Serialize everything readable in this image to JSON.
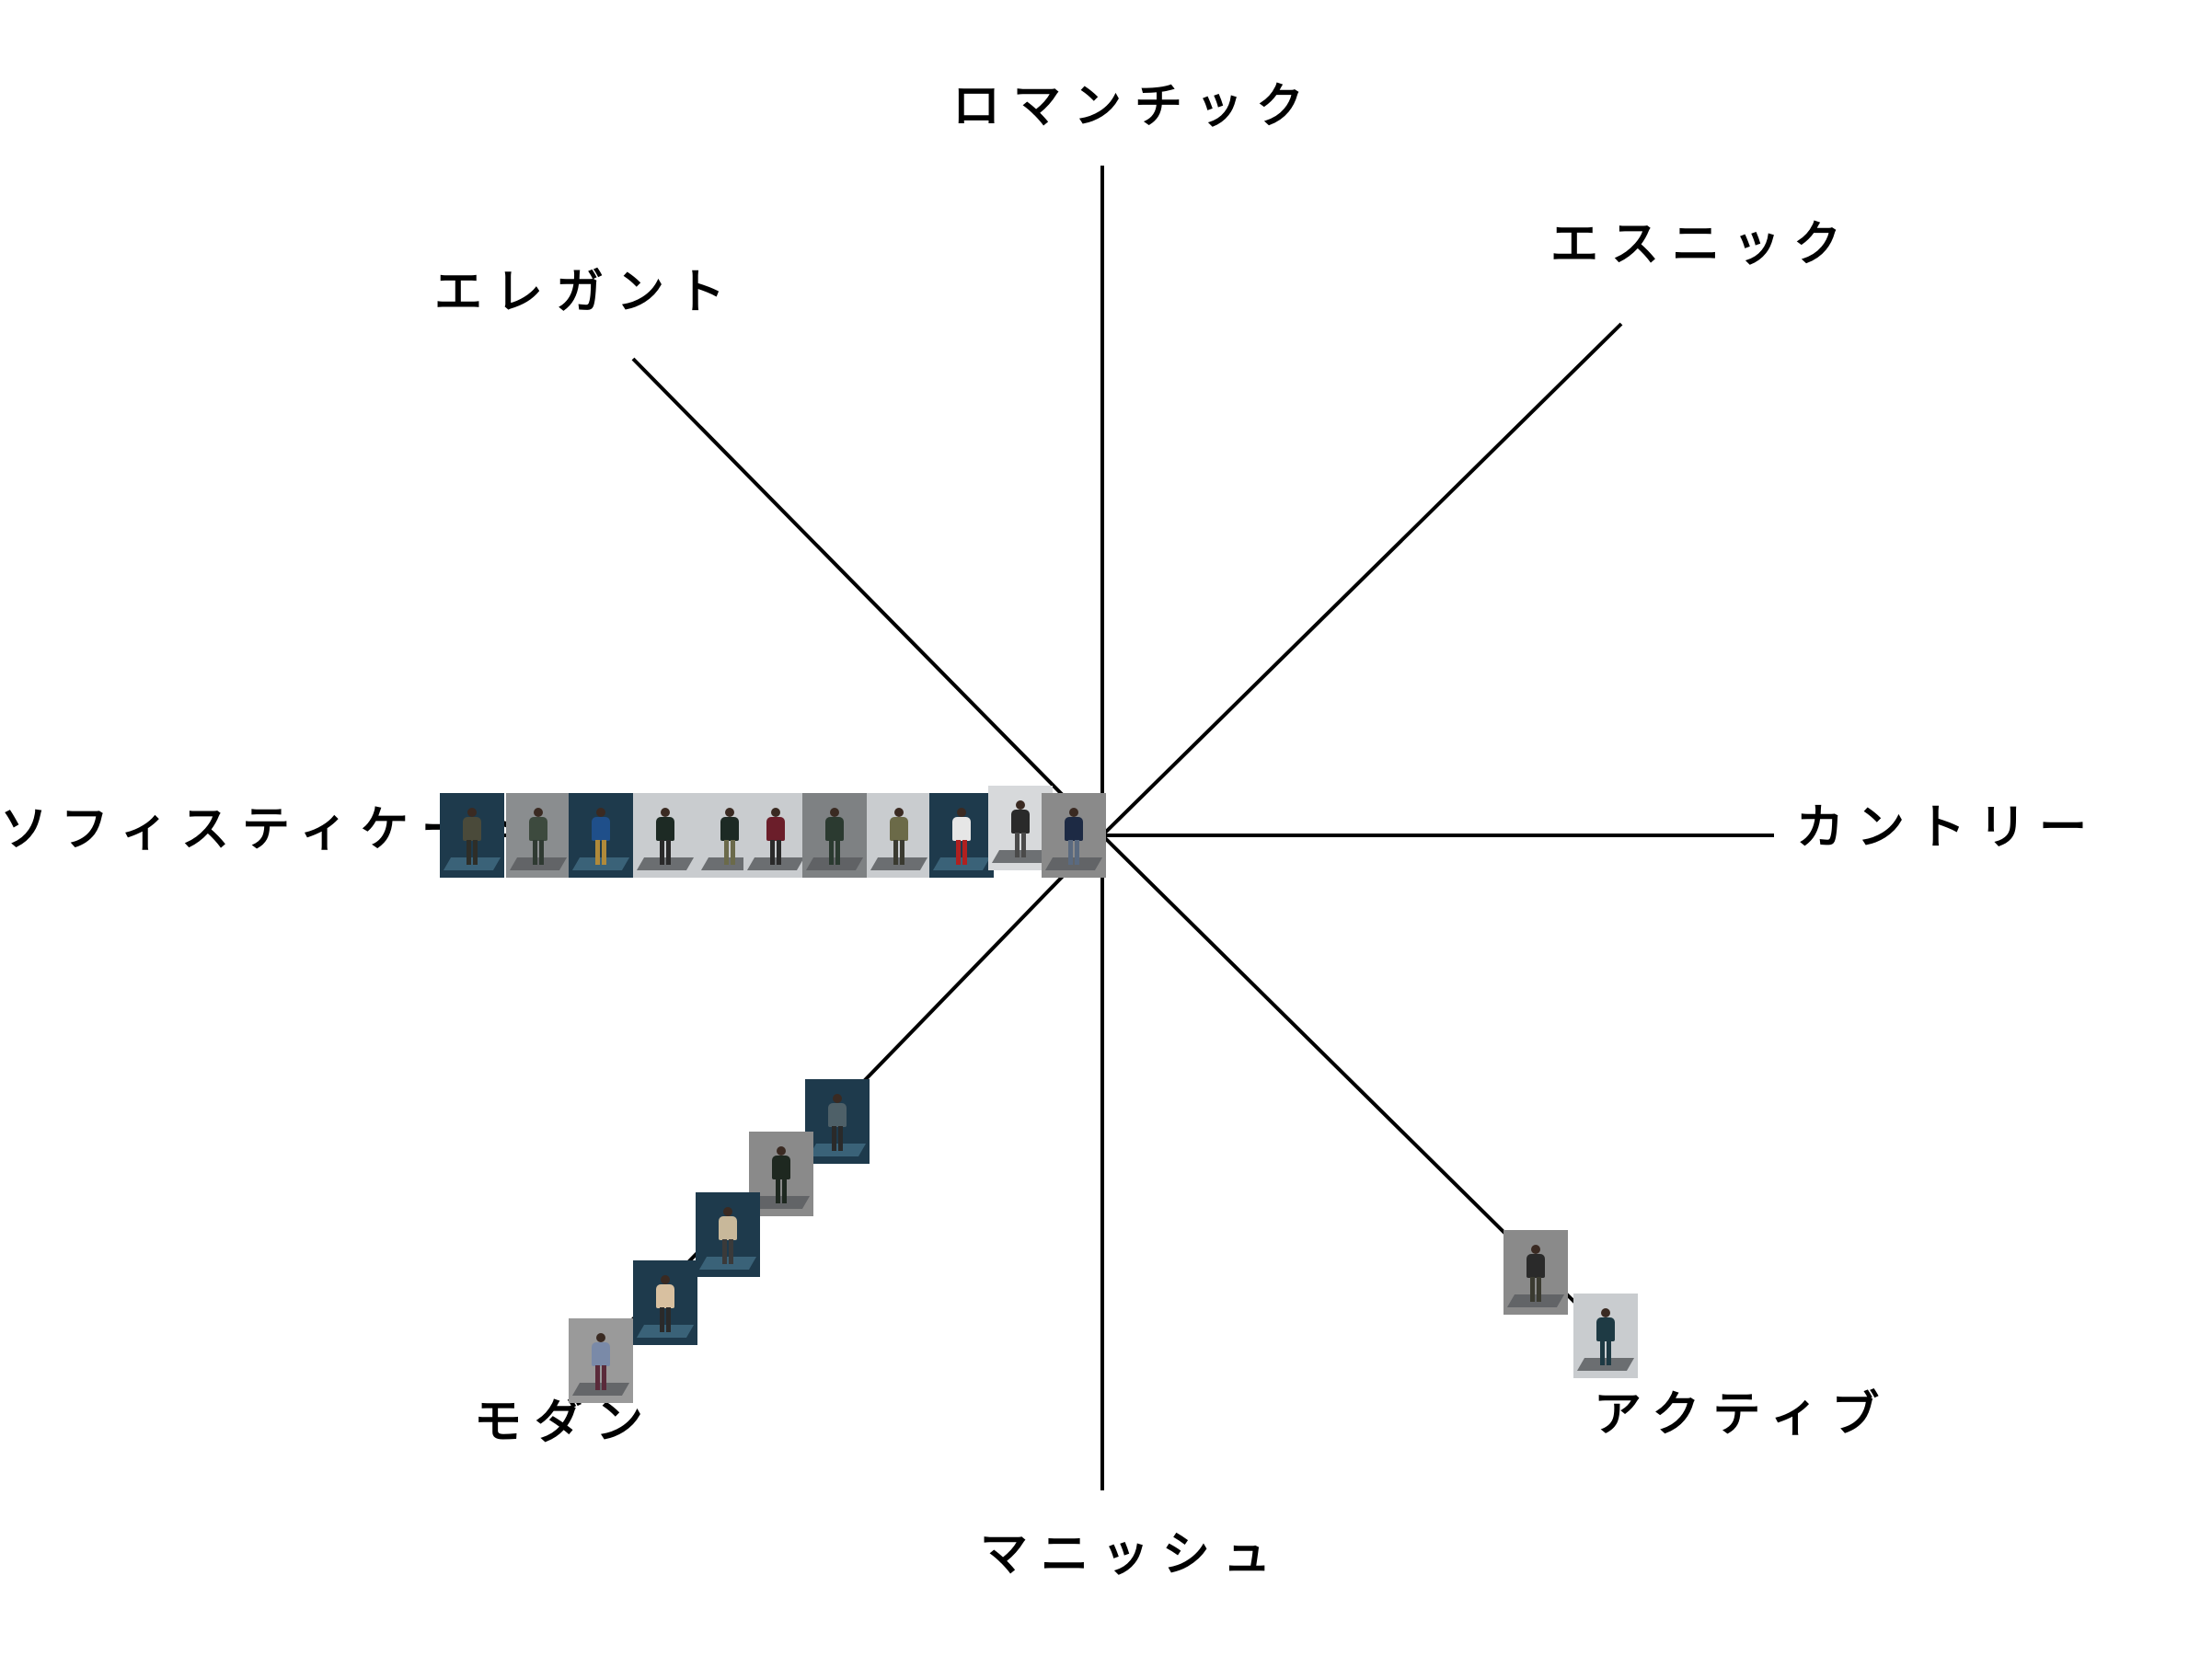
{
  "axes": {
    "top": "ロマンチック",
    "top_right": "エスニック",
    "right": "カントリー",
    "bottom_right": "アクティブ",
    "bottom": "マニッシュ",
    "bottom_left": "モダン",
    "left": "ソフィスティケート",
    "top_left": "エレガント"
  },
  "colors": {
    "line": "#000000",
    "text": "#000000",
    "thumb_dark_teal": "#1e3a4c",
    "thumb_gray": "#8a8a8a",
    "thumb_light": "#cfd2d4"
  },
  "thumbnails": {
    "sophisticate": [
      {
        "bg": "#1e3a4c",
        "coat": "#4a4a3a",
        "pants": "#2e2e28"
      },
      {
        "bg": "#8a8d8f",
        "coat": "#3d4a3e",
        "pants": "#2f3a32"
      },
      {
        "bg": "#1e3a4c",
        "coat": "#1f4f8a",
        "pants": "#b08a3a"
      },
      {
        "bg": "#c9cccf",
        "coat": "#1d2a24",
        "pants": "#2a2a2a"
      },
      {
        "bg": "#c9cccf",
        "coat": "#1d2a24",
        "pants": "#6b6a4a"
      },
      {
        "bg": "#c9cccf",
        "coat": "#6b1e2a",
        "pants": "#2a2a2a"
      },
      {
        "bg": "#7e8183",
        "coat": "#2b3a30",
        "pants": "#2b3a30"
      },
      {
        "bg": "#c9cccf",
        "coat": "#6b6a48",
        "pants": "#3a3a30"
      },
      {
        "bg": "#1e3a4c",
        "coat": "#e6e6e6",
        "pants": "#b02020"
      },
      {
        "bg": "#d7d9db",
        "coat": "#2a2a2a",
        "pants": "#4a4a4a"
      },
      {
        "bg": "#8a8a8a",
        "coat": "#1d2a44",
        "pants": "#5a6a80"
      }
    ],
    "modern": [
      {
        "bg": "#1e3a4c",
        "coat": "#4e6068",
        "pants": "#2a2a2a"
      },
      {
        "bg": "#8a8a8a",
        "coat": "#1e2820",
        "pants": "#1e2820"
      },
      {
        "bg": "#1e3a4c",
        "coat": "#c8b89a",
        "pants": "#3a3a3a"
      },
      {
        "bg": "#1e3a4c",
        "coat": "#d8c0a0",
        "pants": "#2a2a2a"
      },
      {
        "bg": "#9a9a9a",
        "coat": "#7a8aa8",
        "pants": "#5a2a3a"
      }
    ],
    "active": [
      {
        "bg": "#8a8a8a",
        "coat": "#2a2a2a",
        "pants": "#3a3a30"
      },
      {
        "bg": "#c9cccf",
        "coat": "#1e3a44",
        "pants": "#1e3a44"
      }
    ]
  }
}
